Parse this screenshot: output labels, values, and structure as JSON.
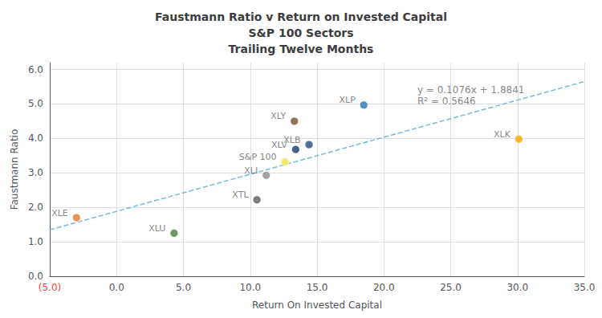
{
  "chart_data": {
    "type": "scatter",
    "title": "Faustmann Ratio v Return on Invested Capital\nS&P 100 Sectors\nTrailing Twelve Months",
    "x_label": "Return On Invested Capital",
    "y_label": "Faustmann Ratio",
    "xlim": [
      -5,
      35
    ],
    "ylim": [
      0.0,
      6.2
    ],
    "xticks": [
      {
        "value": 0,
        "label": "0.0"
      },
      {
        "value": 5,
        "label": "5.0"
      },
      {
        "value": 10,
        "label": "10.0"
      },
      {
        "value": 15,
        "label": "15.0"
      },
      {
        "value": 20,
        "label": "20.0"
      },
      {
        "value": 25,
        "label": "25.0"
      },
      {
        "value": 30,
        "label": "30.0"
      },
      {
        "value": 35,
        "label": "35.0"
      }
    ],
    "yticks": [
      {
        "value": 0,
        "label": "0.0"
      },
      {
        "value": 1,
        "label": "1.0"
      },
      {
        "value": 2,
        "label": "2.0"
      },
      {
        "value": 3,
        "label": "3.0"
      },
      {
        "value": 4,
        "label": "4.0"
      },
      {
        "value": 5,
        "label": "5.0"
      },
      {
        "value": 6,
        "label": "6.0"
      }
    ],
    "grid": true,
    "series": [
      {
        "type": "scatter",
        "labels": [
          "XLE",
          "XLU",
          "XTL",
          "XLI",
          "S&P 100",
          "XLV",
          "XLB",
          "XLY",
          "XLP",
          "XLK"
        ],
        "x": [
          -3.0,
          4.3,
          10.5,
          11.2,
          12.6,
          13.4,
          14.4,
          13.3,
          18.5,
          30.1
        ],
        "values": [
          1.7,
          1.25,
          2.22,
          2.93,
          3.32,
          3.68,
          3.82,
          4.5,
          4.97,
          3.98
        ],
        "colors": [
          "#E87722",
          "#4A7C3F",
          "#5A5A5A",
          "#8C8C8C",
          "#F0E442",
          "#1B3A6B",
          "#1F4E79",
          "#7B4F28",
          "#1F77B4",
          "#FFA500"
        ]
      },
      {
        "type": "line",
        "x": [
          -5,
          35
        ],
        "values": [
          1.3461,
          5.6501
        ],
        "color": "#74B9E0",
        "line_style": "dashed"
      }
    ],
    "annotations": [
      {
        "text": "y = 0.1076x + 1.8841",
        "x": 22.5,
        "y": 5.55
      },
      {
        "text": "R² = 0.5646",
        "x": 22.5,
        "y": 5.22
      },
      {
        "text": "(5.0)",
        "x": -5,
        "y": 0,
        "color": "#FF0000"
      }
    ]
  }
}
